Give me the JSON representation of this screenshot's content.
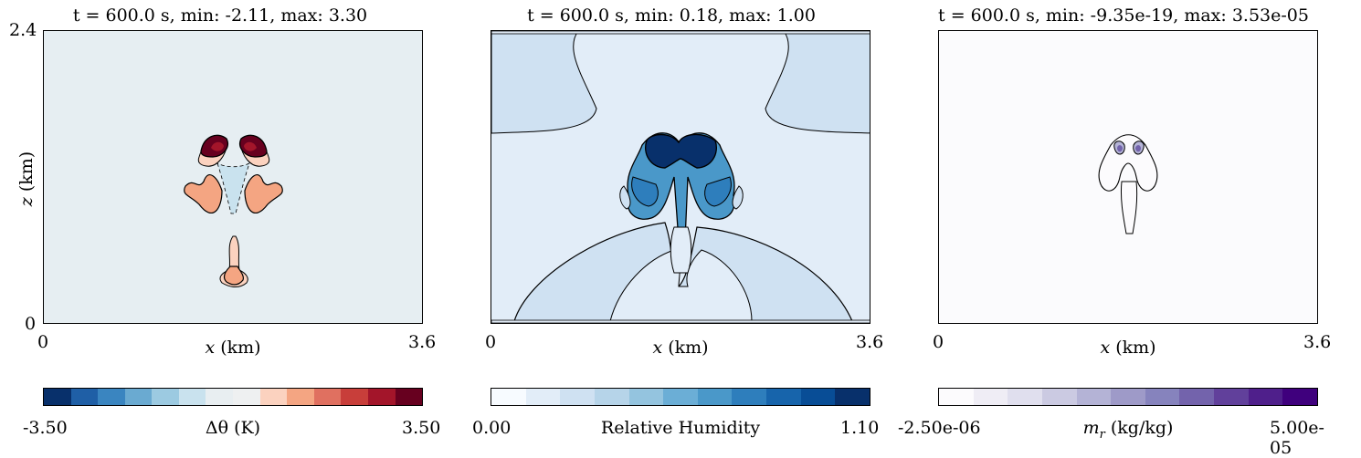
{
  "panels": [
    {
      "title": "t = 600.0 s, min: -2.11, max: 3.30",
      "bg": "#e6eef2",
      "colorbar": {
        "min_label": "-3.50",
        "max_label": "3.50",
        "label": "Δθ (K)",
        "colors": [
          "#08306b",
          "#1f5fa6",
          "#3a85c0",
          "#6aaad1",
          "#9ccae1",
          "#c9e2ee",
          "#e8eef1",
          "#eef0f1",
          "#fbd2bf",
          "#f4a582",
          "#e07060",
          "#c83e3a",
          "#a3152a",
          "#67001f"
        ]
      },
      "xlabel": "x (km)",
      "x_ticks": [
        "0",
        "3.6"
      ]
    },
    {
      "title": "t = 600.0 s, min: 0.18, max: 1.00",
      "bg": "#e2edf8",
      "colorbar": {
        "min_label": "0.00",
        "max_label": "1.10",
        "label": "Relative Humidity",
        "colors": [
          "#f7fbff",
          "#e2edf8",
          "#cfe1f2",
          "#b6d4e9",
          "#94c4df",
          "#6baed6",
          "#4a98c9",
          "#2e7ebc",
          "#1764ab",
          "#084d96",
          "#08306b"
        ]
      },
      "xlabel": "x (km)",
      "x_ticks": [
        "0",
        "3.6"
      ]
    },
    {
      "title": "t = 600.0 s, min: -9.35e-19, max: 3.53e-05",
      "bg": "#fbfbfd",
      "colorbar": {
        "min_label": "-2.50e-06",
        "max_label": "5.00e-05",
        "label": "m_r (kg/kg)",
        "colors": [
          "#fcfbfd",
          "#efedf5",
          "#e0dfee",
          "#cbcae2",
          "#b4b3d6",
          "#9e9ac8",
          "#8683bd",
          "#7363ac",
          "#61409b",
          "#4f1f8b",
          "#3f007d"
        ]
      },
      "xlabel": "x (km)",
      "x_ticks": [
        "0",
        "3.6"
      ]
    }
  ],
  "ylabel": "z (km)",
  "y_ticks": [
    "2.4",
    "0"
  ],
  "chart_data": [
    {
      "type": "heatmap",
      "title": "t = 600.0 s, min: -2.11, max: 3.30",
      "xlabel": "x (km)",
      "ylabel": "z (km)",
      "xlim": [
        0,
        3.6
      ],
      "ylim": [
        0,
        2.4
      ],
      "colorbar_label": "Δθ (K)",
      "crange": [
        -3.5,
        3.5
      ],
      "field_min": -2.11,
      "field_max": 3.3
    },
    {
      "type": "heatmap",
      "title": "t = 600.0 s, min: 0.18, max: 1.00",
      "xlabel": "x (km)",
      "xlim": [
        0,
        3.6
      ],
      "ylim": [
        0,
        2.4
      ],
      "colorbar_label": "Relative Humidity",
      "crange": [
        0.0,
        1.1
      ],
      "field_min": 0.18,
      "field_max": 1.0
    },
    {
      "type": "heatmap",
      "title": "t = 600.0 s, min: -9.35e-19, max: 3.53e-05",
      "xlabel": "x (km)",
      "xlim": [
        0,
        3.6
      ],
      "ylim": [
        0,
        2.4
      ],
      "colorbar_label": "m_r (kg/kg)",
      "crange": [
        -2.5e-06,
        5e-05
      ],
      "field_min": -9.35e-19,
      "field_max": 3.53e-05
    }
  ]
}
